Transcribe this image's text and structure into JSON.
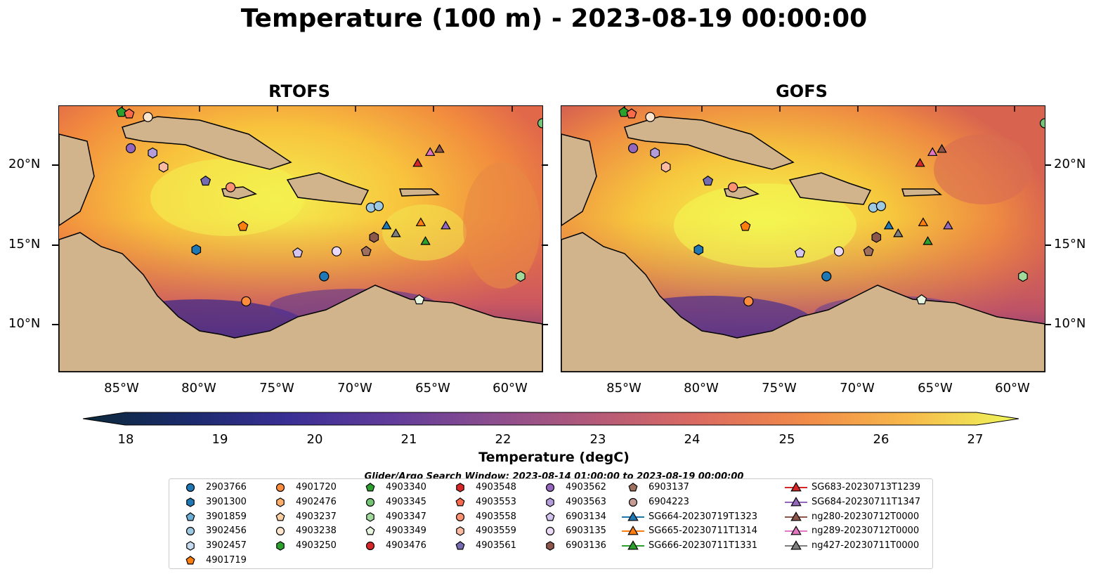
{
  "main_title": "Temperature (100 m) - 2023-08-19 00:00:00",
  "maps": [
    {
      "title": "RTOFS"
    },
    {
      "title": "GOFS"
    }
  ],
  "axes": {
    "lat_ticks": [
      "20°N",
      "15°N",
      "10°N"
    ],
    "lon_ticks": [
      "85°W",
      "80°W",
      "75°W",
      "70°W",
      "65°W",
      "60°W"
    ],
    "lon_range": [
      -89,
      -58
    ],
    "lat_range": [
      7,
      24
    ]
  },
  "colorbar": {
    "label": "Temperature (degC)",
    "ticks": [
      "18",
      "19",
      "20",
      "21",
      "22",
      "23",
      "24",
      "25",
      "26",
      "27"
    ],
    "range": [
      18,
      27
    ]
  },
  "search_window": "Glider/Argo Search Window: 2023-08-14 01:00:00 to 2023-08-19 00:00:00",
  "legend": {
    "columns": [
      [
        {
          "label": "2903766",
          "marker": "circle",
          "color": "#1f77b4"
        },
        {
          "label": "3901300",
          "marker": "hexagon",
          "color": "#1f77b4"
        },
        {
          "label": "3901859",
          "marker": "pentagon",
          "color": "#6baed6"
        },
        {
          "label": "3902456",
          "marker": "circle",
          "color": "#9ecae1"
        },
        {
          "label": "3902457",
          "marker": "hexagon",
          "color": "#c6dbef"
        },
        {
          "label": "4901719",
          "marker": "pentagon",
          "color": "#ff7f0e"
        }
      ],
      [
        {
          "label": "4901720",
          "marker": "circle",
          "color": "#fd8d3c"
        },
        {
          "label": "4902476",
          "marker": "hexagon",
          "color": "#fdae6b"
        },
        {
          "label": "4903237",
          "marker": "pentagon",
          "color": "#fdd0a2"
        },
        {
          "label": "4903238",
          "marker": "circle",
          "color": "#fee6ce"
        },
        {
          "label": "4903250",
          "marker": "hexagon",
          "color": "#2ca02c"
        }
      ],
      [
        {
          "label": "4903340",
          "marker": "pentagon",
          "color": "#2ca02c"
        },
        {
          "label": "4903345",
          "marker": "circle",
          "color": "#74c476"
        },
        {
          "label": "4903347",
          "marker": "hexagon",
          "color": "#a1d99b"
        },
        {
          "label": "4903349",
          "marker": "pentagon",
          "color": "#e5f5e0"
        },
        {
          "label": "4903476",
          "marker": "circle",
          "color": "#d62728"
        }
      ],
      [
        {
          "label": "4903548",
          "marker": "hexagon",
          "color": "#d62728"
        },
        {
          "label": "4903553",
          "marker": "pentagon",
          "color": "#fb6a4a"
        },
        {
          "label": "4903558",
          "marker": "circle",
          "color": "#fc9272"
        },
        {
          "label": "4903559",
          "marker": "hexagon",
          "color": "#fcbba1"
        },
        {
          "label": "4903561",
          "marker": "pentagon",
          "color": "#756bb1"
        }
      ],
      [
        {
          "label": "4903562",
          "marker": "circle",
          "color": "#9467bd"
        },
        {
          "label": "4903563",
          "marker": "hexagon",
          "color": "#b39ddb"
        },
        {
          "label": "6903134",
          "marker": "pentagon",
          "color": "#d4c4f0"
        },
        {
          "label": "6903135",
          "marker": "circle",
          "color": "#ead9f7"
        },
        {
          "label": "6903136",
          "marker": "hexagon",
          "color": "#8c564b"
        }
      ],
      [
        {
          "label": "6903137",
          "marker": "pentagon",
          "color": "#a0705f"
        },
        {
          "label": "6904223",
          "marker": "circle",
          "color": "#c49c94"
        },
        {
          "label": "SG664-20230719T1323",
          "marker": "triangle-line",
          "color": "#1f77b4"
        },
        {
          "label": "SG665-20230711T1314",
          "marker": "triangle-line",
          "color": "#ff7f0e"
        },
        {
          "label": "SG666-20230711T1331",
          "marker": "triangle-line",
          "color": "#2ca02c"
        }
      ],
      [
        {
          "label": "SG683-20230713T1239",
          "marker": "triangle-line",
          "color": "#d62728"
        },
        {
          "label": "SG684-20230711T1347",
          "marker": "triangle-line",
          "color": "#9467bd"
        },
        {
          "label": "ng280-20230712T0000",
          "marker": "triangle-line",
          "color": "#8c564b"
        },
        {
          "label": "ng289-20230712T0000",
          "marker": "triangle-line",
          "color": "#e377c2"
        },
        {
          "label": "ng427-20230711T0000",
          "marker": "triangle-line",
          "color": "#7f7f7f"
        }
      ]
    ]
  },
  "observations": [
    {
      "id": "4903340",
      "lon": -85.0,
      "lat": 23.6,
      "marker": "pentagon",
      "color": "#2ca02c"
    },
    {
      "id": "4903553",
      "lon": -84.5,
      "lat": 23.5,
      "marker": "pentagon",
      "color": "#fb6a4a"
    },
    {
      "id": "4903238",
      "lon": -83.3,
      "lat": 23.3,
      "marker": "circle",
      "color": "#fee6ce"
    },
    {
      "id": "4903562",
      "lon": -84.4,
      "lat": 21.3,
      "marker": "circle",
      "color": "#9467bd"
    },
    {
      "id": "4903563",
      "lon": -83.0,
      "lat": 21.0,
      "marker": "hexagon",
      "color": "#b39ddb"
    },
    {
      "id": "4903559",
      "lon": -82.3,
      "lat": 20.1,
      "marker": "hexagon",
      "color": "#fcbba1"
    },
    {
      "id": "4903561",
      "lon": -79.6,
      "lat": 19.2,
      "marker": "pentagon",
      "color": "#756bb1"
    },
    {
      "id": "4903558",
      "lon": -78.0,
      "lat": 18.8,
      "marker": "circle",
      "color": "#fc9272"
    },
    {
      "id": "4901719",
      "lon": -77.2,
      "lat": 16.3,
      "marker": "pentagon",
      "color": "#ff7f0e"
    },
    {
      "id": "3901300",
      "lon": -80.2,
      "lat": 14.8,
      "marker": "hexagon",
      "color": "#1f77b4"
    },
    {
      "id": "6903134",
      "lon": -73.7,
      "lat": 14.6,
      "marker": "pentagon",
      "color": "#d4c4f0"
    },
    {
      "id": "6903135",
      "lon": -71.2,
      "lat": 14.7,
      "marker": "circle",
      "color": "#ead9f7"
    },
    {
      "id": "6903137",
      "lon": -69.3,
      "lat": 14.7,
      "marker": "pentagon",
      "color": "#a0705f"
    },
    {
      "id": "6903136",
      "lon": -68.8,
      "lat": 15.6,
      "marker": "hexagon",
      "color": "#8c564b"
    },
    {
      "id": "2903766",
      "lon": -72.0,
      "lat": 13.1,
      "marker": "circle",
      "color": "#1f77b4"
    },
    {
      "id": "4901720",
      "lon": -77.0,
      "lat": 11.5,
      "marker": "circle",
      "color": "#fd8d3c"
    },
    {
      "id": "3902456",
      "lon": -69.0,
      "lat": 17.5,
      "marker": "circle",
      "color": "#9ecae1"
    },
    {
      "id": "3902456b",
      "lon": -68.5,
      "lat": 17.6,
      "marker": "circle",
      "color": "#9ecae1"
    },
    {
      "id": "4903349",
      "lon": -65.9,
      "lat": 11.6,
      "marker": "pentagon",
      "color": "#e5f5e0"
    },
    {
      "id": "4903345",
      "lon": -58.0,
      "lat": 22.9,
      "marker": "circle",
      "color": "#74c476"
    },
    {
      "id": "4903347",
      "lon": -59.4,
      "lat": 13.1,
      "marker": "hexagon",
      "color": "#a1d99b"
    },
    {
      "id": "SG683",
      "lon": -66.0,
      "lat": 20.3,
      "marker": "triangle",
      "color": "#d62728"
    },
    {
      "id": "ng289",
      "lon": -65.2,
      "lat": 21.0,
      "marker": "triangle",
      "color": "#e377c2"
    },
    {
      "id": "ng280",
      "lon": -64.6,
      "lat": 21.2,
      "marker": "triangle",
      "color": "#8c564b"
    },
    {
      "id": "SG664",
      "lon": -68.0,
      "lat": 16.3,
      "marker": "triangle",
      "color": "#1f77b4"
    },
    {
      "id": "ng427",
      "lon": -67.4,
      "lat": 15.8,
      "marker": "triangle",
      "color": "#7f7f7f"
    },
    {
      "id": "SG665",
      "lon": -65.8,
      "lat": 16.5,
      "marker": "triangle",
      "color": "#ff7f0e"
    },
    {
      "id": "SG684",
      "lon": -64.2,
      "lat": 16.3,
      "marker": "triangle",
      "color": "#9467bd"
    },
    {
      "id": "SG666",
      "lon": -65.5,
      "lat": 15.3,
      "marker": "triangle",
      "color": "#2ca02c"
    }
  ]
}
